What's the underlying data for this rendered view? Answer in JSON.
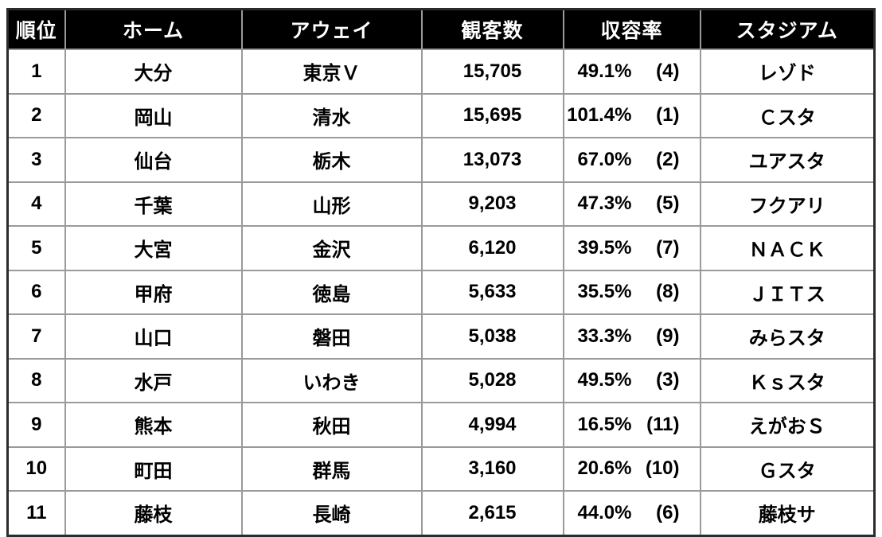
{
  "colors": {
    "header_bg": "#000000",
    "header_text": "#ffffff",
    "grid_line": "#9a9a9a",
    "outer_border": "#2b2b2b",
    "body_bg": "#ffffff",
    "body_text": "#000000"
  },
  "table": {
    "columns": [
      {
        "key": "rank",
        "label": "順位"
      },
      {
        "key": "home",
        "label": "ホーム"
      },
      {
        "key": "away",
        "label": "アウェイ"
      },
      {
        "key": "attendance",
        "label": "観客数"
      },
      {
        "key": "occupancy",
        "label": "収容率"
      },
      {
        "key": "stadium",
        "label": "スタジアム"
      }
    ],
    "rows": [
      {
        "rank": "1",
        "home": "大分",
        "away": "東京Ｖ",
        "attendance": "15,705",
        "occupancy_pct": "49.1%",
        "occupancy_rank": "(4)",
        "stadium": "レゾド"
      },
      {
        "rank": "2",
        "home": "岡山",
        "away": "清水",
        "attendance": "15,695",
        "occupancy_pct": "101.4%",
        "occupancy_rank": "(1)",
        "stadium": "Ｃスタ"
      },
      {
        "rank": "3",
        "home": "仙台",
        "away": "栃木",
        "attendance": "13,073",
        "occupancy_pct": "67.0%",
        "occupancy_rank": "(2)",
        "stadium": "ユアスタ"
      },
      {
        "rank": "4",
        "home": "千葉",
        "away": "山形",
        "attendance": "9,203",
        "occupancy_pct": "47.3%",
        "occupancy_rank": "(5)",
        "stadium": "フクアリ"
      },
      {
        "rank": "5",
        "home": "大宮",
        "away": "金沢",
        "attendance": "6,120",
        "occupancy_pct": "39.5%",
        "occupancy_rank": "(7)",
        "stadium": "ＮＡＣＫ"
      },
      {
        "rank": "6",
        "home": "甲府",
        "away": "徳島",
        "attendance": "5,633",
        "occupancy_pct": "35.5%",
        "occupancy_rank": "(8)",
        "stadium": "ＪＩＴス"
      },
      {
        "rank": "7",
        "home": "山口",
        "away": "磐田",
        "attendance": "5,038",
        "occupancy_pct": "33.3%",
        "occupancy_rank": "(9)",
        "stadium": "みらスタ"
      },
      {
        "rank": "8",
        "home": "水戸",
        "away": "いわき",
        "attendance": "5,028",
        "occupancy_pct": "49.5%",
        "occupancy_rank": "(3)",
        "stadium": "Ｋｓスタ"
      },
      {
        "rank": "9",
        "home": "熊本",
        "away": "秋田",
        "attendance": "4,994",
        "occupancy_pct": "16.5%",
        "occupancy_rank": "(11)",
        "stadium": "えがおＳ"
      },
      {
        "rank": "10",
        "home": "町田",
        "away": "群馬",
        "attendance": "3,160",
        "occupancy_pct": "20.6%",
        "occupancy_rank": "(10)",
        "stadium": "Ｇスタ"
      },
      {
        "rank": "11",
        "home": "藤枝",
        "away": "長崎",
        "attendance": "2,615",
        "occupancy_pct": "44.0%",
        "occupancy_rank": "(6)",
        "stadium": "藤枝サ"
      }
    ]
  },
  "chart_data": {
    "type": "table",
    "columns": [
      "順位",
      "ホーム",
      "アウェイ",
      "観客数",
      "収容率",
      "スタジアム"
    ],
    "rows": [
      [
        "1",
        "大分",
        "東京Ｖ",
        "15,705",
        "49.1% (4)",
        "レゾド"
      ],
      [
        "2",
        "岡山",
        "清水",
        "15,695",
        "101.4% (1)",
        "Ｃスタ"
      ],
      [
        "3",
        "仙台",
        "栃木",
        "13,073",
        "67.0% (2)",
        "ユアスタ"
      ],
      [
        "4",
        "千葉",
        "山形",
        "9,203",
        "47.3% (5)",
        "フクアリ"
      ],
      [
        "5",
        "大宮",
        "金沢",
        "6,120",
        "39.5% (7)",
        "ＮＡＣＫ"
      ],
      [
        "6",
        "甲府",
        "徳島",
        "5,633",
        "35.5% (8)",
        "ＪＩＴス"
      ],
      [
        "7",
        "山口",
        "磐田",
        "5,038",
        "33.3% (9)",
        "みらスタ"
      ],
      [
        "8",
        "水戸",
        "いわき",
        "5,028",
        "49.5% (3)",
        "Ｋｓスタ"
      ],
      [
        "9",
        "熊本",
        "秋田",
        "4,994",
        "16.5% (11)",
        "えがおＳ"
      ],
      [
        "10",
        "町田",
        "群馬",
        "3,160",
        "20.6% (10)",
        "Ｇスタ"
      ],
      [
        "11",
        "藤枝",
        "長崎",
        "2,615",
        "44.0% (6)",
        "藤枝サ"
      ]
    ],
    "attendance_values": [
      15705,
      15695,
      13073,
      9203,
      6120,
      5633,
      5038,
      5028,
      4994,
      3160,
      2615
    ],
    "occupancy_pct_values": [
      49.1,
      101.4,
      67.0,
      47.3,
      39.5,
      35.5,
      33.3,
      49.5,
      16.5,
      20.6,
      44.0
    ],
    "occupancy_rank_values": [
      4,
      1,
      2,
      5,
      7,
      8,
      9,
      3,
      11,
      10,
      6
    ]
  }
}
